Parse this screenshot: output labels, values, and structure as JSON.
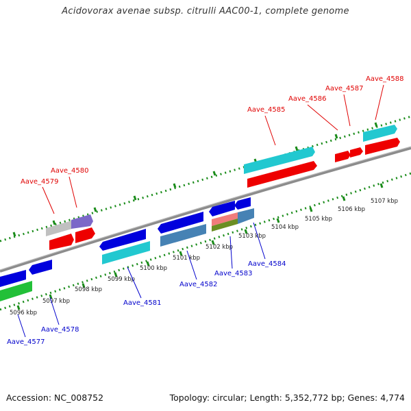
{
  "title": "Acidovorax avenae subsp. citrulli AAC00-1, complete genome",
  "footer": {
    "accession": "Accession: NC_008752",
    "topology": "Topology: circular; Length: 5,352,772 bp; Genes: 4,774"
  },
  "colors": {
    "backbone": "#8c8c8c",
    "ticks": "#1a8c1a",
    "scale_text": "#222222",
    "label_plus": "#e00000",
    "label_minus": "#0000cc"
  },
  "scale_ticks": [
    "5096 kbp",
    "5097 kbp",
    "5098 kbp",
    "5099 kbp",
    "5100 kbp",
    "5101 kbp",
    "5102 kbp",
    "5103 kbp",
    "5104 kbp",
    "5105 kbp",
    "5106 kbp",
    "5107 kbp"
  ],
  "gene_labels": {
    "plus": [
      "Aave_4579",
      "Aave_4580",
      "Aave_4585",
      "Aave_4586",
      "Aave_4587",
      "Aave_4588"
    ],
    "minus": [
      "Aave_4577",
      "Aave_4578",
      "Aave_4581",
      "Aave_4582",
      "Aave_4583",
      "Aave_4584"
    ]
  }
}
